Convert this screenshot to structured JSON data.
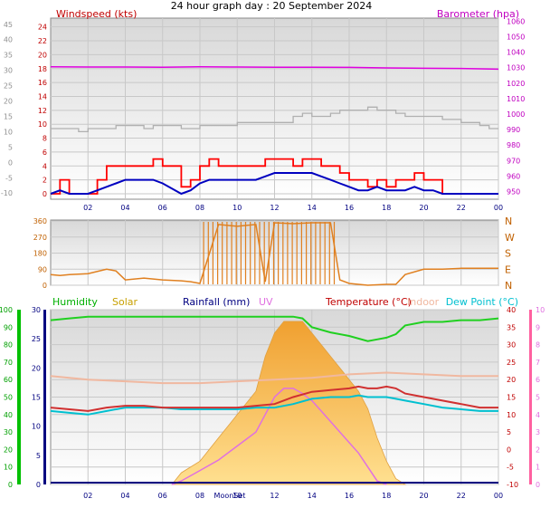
{
  "title": "24 hour graph day : 20 September 2024",
  "colors": {
    "wind_label": "#c00000",
    "baro_label": "#c000c0",
    "humidity": "#00b000",
    "solar": "#c8a000",
    "rainfall": "#000080",
    "uv": "#e070e0",
    "temperature": "#c00000",
    "indoor": "#f0b8a0",
    "dewpoint": "#00c0d0",
    "wind_avg": "#0000c0",
    "gust": "#ff0000",
    "baro_line": "#e000e0",
    "direction": "#e08020",
    "grey_line": "#b0b0b0"
  },
  "chart_data": [
    {
      "type": "line",
      "name": "wind-pressure",
      "title_left": "Windspeed (kts)",
      "title_right": "Barometer (hpa)",
      "x_ticks": [
        "02",
        "04",
        "06",
        "08",
        "10",
        "12",
        "14",
        "16",
        "18",
        "20",
        "22",
        "00"
      ],
      "y_left_grey_ticks": [
        "-10",
        "-5",
        "0",
        "5",
        "10",
        "15",
        "20",
        "25",
        "30",
        "35",
        "40",
        "45"
      ],
      "y_left_red_ticks": [
        "0",
        "2",
        "4",
        "6",
        "8",
        "10",
        "12",
        "14",
        "16",
        "18",
        "20",
        "22",
        "24"
      ],
      "y_right_ticks": [
        "950",
        "960",
        "970",
        "980",
        "990",
        "1000",
        "1010",
        "1020",
        "1030",
        "1040",
        "1050",
        "1060"
      ],
      "ylim_wind": [
        0,
        25
      ],
      "ylim_baro": [
        945,
        1062
      ],
      "ylim_grey": [
        -12,
        47
      ],
      "series": [
        {
          "id": "barometer",
          "x": [
            0,
            2,
            4,
            6,
            8,
            10,
            12,
            14,
            16,
            18,
            20,
            22,
            24
          ],
          "y": [
            1030.5,
            1030.4,
            1030.4,
            1030.3,
            1030.6,
            1030.4,
            1030.3,
            1030.3,
            1030.2,
            1029.8,
            1029.6,
            1029.5,
            1029.0
          ]
        },
        {
          "id": "grey",
          "x": [
            0,
            1,
            1.5,
            2,
            2.5,
            3,
            3.5,
            4,
            5,
            5.5,
            6,
            6.5,
            7,
            8,
            9,
            10,
            11,
            12,
            13,
            13.5,
            14,
            15,
            15.5,
            16,
            17,
            17.5,
            18,
            18.5,
            19,
            20,
            21,
            22,
            23,
            23.5,
            24
          ],
          "y": [
            11,
            11,
            10,
            11,
            11,
            11,
            12,
            12,
            11,
            12,
            12,
            12,
            11,
            12,
            12,
            13,
            13,
            13,
            15,
            16,
            15,
            16,
            17,
            17,
            18,
            17,
            17,
            16,
            15,
            15,
            14,
            13,
            12,
            11,
            11
          ]
        },
        {
          "id": "gust",
          "x": [
            0,
            0.5,
            1,
            2,
            2.5,
            3,
            3.5,
            4,
            5,
            5.5,
            6,
            7,
            7.5,
            8,
            8.5,
            9,
            10,
            11,
            11.5,
            12,
            12.5,
            13,
            13.5,
            14,
            14.5,
            15,
            15.5,
            16,
            16.5,
            17,
            17.5,
            18,
            18.5,
            19,
            19.5,
            20,
            20.5,
            21,
            22,
            23,
            24
          ],
          "y": [
            0,
            2,
            0,
            0,
            2,
            4,
            4,
            4,
            4,
            5,
            4,
            1,
            2,
            4,
            5,
            4,
            4,
            4,
            5,
            5,
            5,
            4,
            5,
            5,
            4,
            4,
            3,
            2,
            2,
            1,
            2,
            1,
            2,
            2,
            3,
            2,
            2,
            0,
            0,
            0,
            0
          ]
        },
        {
          "id": "average",
          "x": [
            0,
            0.5,
            1,
            2,
            2.5,
            3,
            3.5,
            4,
            5,
            5.5,
            6,
            7,
            7.5,
            8,
            8.5,
            9,
            10,
            11,
            11.5,
            12,
            12.5,
            13,
            13.5,
            14,
            14.5,
            15,
            15.5,
            16,
            16.5,
            17,
            17.5,
            18,
            18.5,
            19,
            19.5,
            20,
            20.5,
            21,
            22,
            23,
            24
          ],
          "y": [
            0,
            0.5,
            0,
            0,
            0.5,
            1,
            1.5,
            2,
            2,
            2,
            1.5,
            0,
            0.5,
            1.5,
            2,
            2,
            2,
            2,
            2.5,
            3,
            3,
            3,
            3,
            3,
            2.5,
            2,
            1.5,
            1,
            0.5,
            0.5,
            1,
            0.5,
            0.5,
            0.5,
            1,
            0.5,
            0.5,
            0,
            0,
            0,
            0
          ]
        }
      ]
    },
    {
      "type": "line",
      "name": "wind-direction",
      "x_ticks": [],
      "y_ticks": [
        "0",
        "90",
        "180",
        "270",
        "360"
      ],
      "compass_labels": [
        "N",
        "E",
        "S",
        "W",
        "N"
      ],
      "ylim": [
        0,
        360
      ],
      "series": [
        {
          "id": "direction",
          "x": [
            0,
            0.5,
            1,
            2,
            3,
            3.5,
            4,
            5,
            6,
            7,
            7.5,
            8,
            9,
            10,
            11,
            11.5,
            12,
            13,
            14,
            15,
            15.5,
            16,
            17,
            18,
            18.5,
            19,
            20,
            21,
            22,
            23,
            24
          ],
          "y": [
            60,
            55,
            60,
            65,
            90,
            80,
            30,
            40,
            30,
            25,
            20,
            10,
            340,
            330,
            340,
            20,
            350,
            345,
            350,
            350,
            30,
            10,
            0,
            5,
            5,
            60,
            90,
            90,
            95,
            95,
            95
          ]
        }
      ]
    },
    {
      "type": "area",
      "name": "temp-humidity-solar",
      "labels": [
        "Humidity",
        "Solar",
        "Rainfall (mm)",
        "UV",
        "Temperature (°C)",
        "Indoor",
        "Dew Point (°C)"
      ],
      "x_ticks": [
        "02",
        "04",
        "06",
        "08",
        "10",
        "12",
        "14",
        "16",
        "18",
        "20",
        "22",
        "00"
      ],
      "special_tick_label": "MoonSet",
      "y_left_humidity_ticks": [
        "0",
        "10",
        "20",
        "30",
        "40",
        "50",
        "60",
        "70",
        "80",
        "90",
        "100"
      ],
      "y_left_rain_ticks": [
        "0",
        "5",
        "10",
        "15",
        "20",
        "25",
        "30"
      ],
      "y_right_temp_ticks": [
        "-10",
        "-5",
        "0",
        "5",
        "10",
        "15",
        "20",
        "25",
        "30",
        "35",
        "40"
      ],
      "y_right_uv_ticks": [
        "0",
        "1",
        "2",
        "3",
        "4",
        "5",
        "6",
        "7",
        "8",
        "9",
        "10"
      ],
      "ylim_temp": [
        -10,
        40
      ],
      "ylim_humidity": [
        0,
        100
      ],
      "series": [
        {
          "id": "humidity",
          "x": [
            0,
            1,
            2,
            3,
            4,
            5,
            6,
            7,
            8,
            9,
            10,
            11,
            12,
            13,
            13.5,
            14,
            15,
            16,
            17,
            17.5,
            18,
            18.5,
            19,
            20,
            21,
            22,
            23,
            24
          ],
          "y": [
            94,
            95,
            96,
            96,
            96,
            96,
            96,
            96,
            96,
            96,
            96,
            96,
            96,
            96,
            95,
            90,
            87,
            85,
            82,
            83,
            84,
            86,
            91,
            93,
            93,
            94,
            94,
            95
          ]
        },
        {
          "id": "indoor",
          "x": [
            0,
            2,
            4,
            6,
            8,
            10,
            12,
            14,
            16,
            18,
            20,
            22,
            24
          ],
          "y": [
            21,
            20,
            19.5,
            19,
            19,
            19.5,
            20,
            20.5,
            21.5,
            22,
            21.5,
            21,
            21
          ]
        },
        {
          "id": "temperature",
          "x": [
            0,
            1,
            2,
            3,
            4,
            5,
            6,
            7,
            8,
            9,
            10,
            11,
            12,
            13,
            14,
            15,
            16,
            16.5,
            17,
            17.5,
            18,
            18.5,
            19,
            20,
            21,
            22,
            23,
            24
          ],
          "y": [
            12,
            11.5,
            11,
            12,
            12.5,
            12.5,
            12,
            12,
            12,
            12,
            12,
            12.5,
            13,
            15,
            16.5,
            17,
            17.5,
            18,
            17.5,
            17.5,
            18,
            17.5,
            16,
            15,
            14,
            13,
            12,
            12
          ]
        },
        {
          "id": "dewpoint",
          "x": [
            0,
            1,
            2,
            3,
            4,
            5,
            6,
            7,
            8,
            9,
            10,
            11,
            12,
            13,
            14,
            15,
            16,
            16.5,
            17,
            17.5,
            18,
            18.5,
            19,
            20,
            21,
            22,
            23,
            24
          ],
          "y": [
            11,
            10.5,
            10,
            11,
            12,
            12,
            12,
            11.5,
            11.5,
            11.5,
            11.5,
            12,
            12,
            13,
            14.5,
            15,
            15,
            15.5,
            15,
            15,
            15,
            14.5,
            14,
            13,
            12,
            11.5,
            11,
            11
          ]
        },
        {
          "id": "solar",
          "x": [
            6.5,
            7,
            8,
            9,
            10,
            11,
            11.5,
            12,
            12.5,
            13,
            13.5,
            14,
            14.5,
            15,
            15.5,
            16,
            16.5,
            17,
            17.5,
            18,
            18.5,
            19
          ],
          "y": [
            0,
            2,
            4,
            8,
            12,
            16,
            22,
            26,
            28,
            28,
            28,
            26,
            24,
            22,
            20,
            18,
            16,
            13,
            8,
            4,
            1,
            0
          ]
        },
        {
          "id": "uv",
          "x": [
            6.5,
            7,
            8,
            9,
            10,
            11,
            11.5,
            12,
            12.5,
            13,
            13.5,
            14,
            14.5,
            15,
            15.5,
            16,
            16.5,
            17,
            17.5,
            18
          ],
          "y": [
            0,
            0.2,
            0.8,
            1.4,
            2.2,
            3,
            4,
            5,
            5.5,
            5.5,
            5.2,
            4.8,
            4.2,
            3.6,
            3,
            2.4,
            1.8,
            1,
            0.2,
            0
          ]
        },
        {
          "id": "rainfall",
          "x": [
            0,
            24
          ],
          "y": [
            0,
            0
          ]
        }
      ]
    }
  ]
}
